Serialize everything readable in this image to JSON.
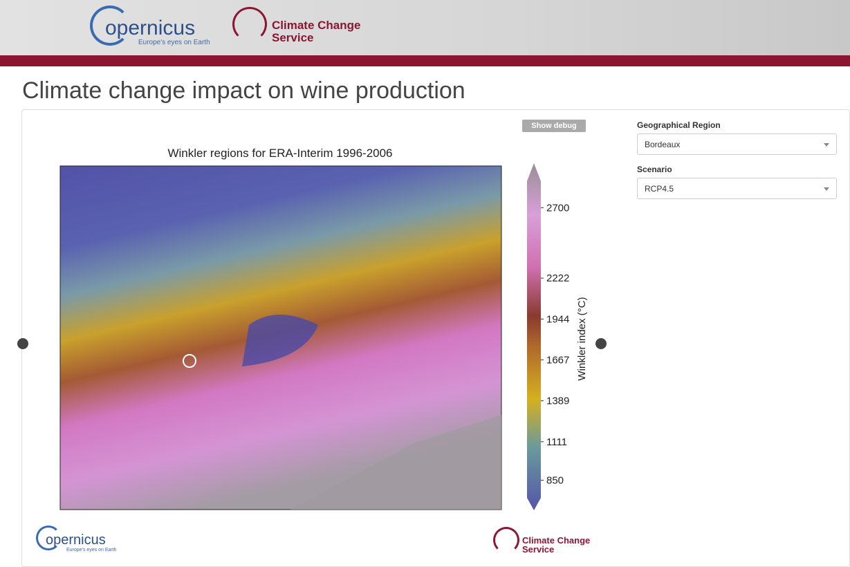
{
  "header": {
    "logo": {
      "name": "opernicus",
      "tagline": "Europe's eyes on Earth"
    },
    "service": {
      "line1": "Climate Change",
      "line2": "Service"
    }
  },
  "page_title": "Climate change impact on wine production",
  "debug_button": "Show debug",
  "figure": {
    "title": "Winkler regions for ERA-Interim 1996-2006",
    "colorbar": {
      "label": "Winkler index (°C)",
      "range": [
        730,
        2880
      ],
      "ticks": [
        850,
        1111,
        1389,
        1667,
        1944,
        2222,
        2700
      ]
    }
  },
  "form": {
    "region": {
      "label": "Geographical Region",
      "value": "Bordeaux"
    },
    "scenario": {
      "label": "Scenario",
      "value": "RCP4.5"
    }
  },
  "footer": {
    "logo": {
      "name": "opernicus",
      "tagline": "Europe's eyes on Earth"
    },
    "service": {
      "line1": "Climate Change",
      "line2": "Service"
    }
  }
}
